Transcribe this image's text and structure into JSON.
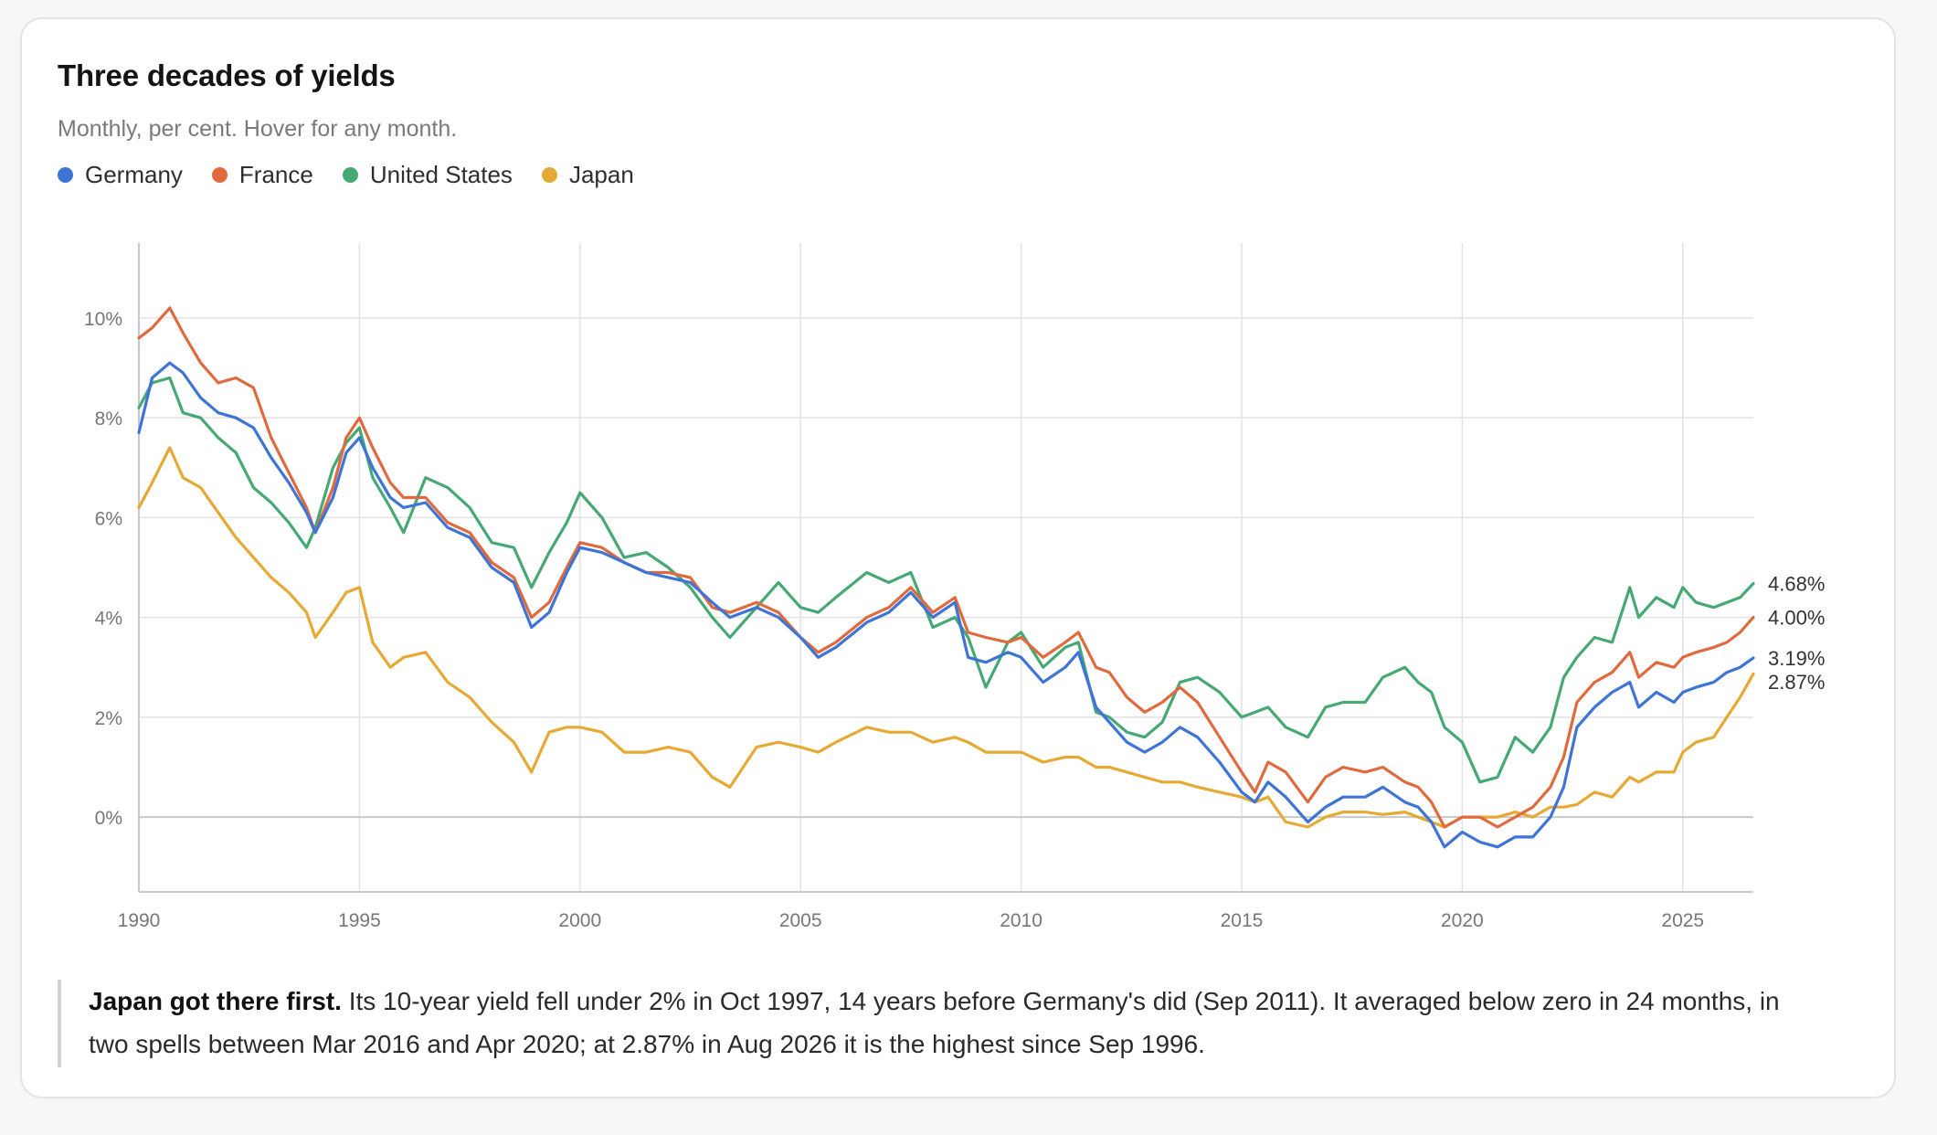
{
  "title": "Three decades of yields",
  "subtitle": "Monthly, per cent. Hover for any month.",
  "legend": [
    {
      "name": "Germany",
      "color": "#3e74d6"
    },
    {
      "name": "France",
      "color": "#e06a3d"
    },
    {
      "name": "United States",
      "color": "#46a874"
    },
    {
      "name": "Japan",
      "color": "#e6aa34"
    }
  ],
  "note": {
    "lead": "Japan got there first.",
    "body": " Its 10-year yield fell under 2% in Oct 1997, 14 years before Germany's did (Sep 2011). It averaged below zero in 24 months, in two spells between Mar 2016 and Apr 2020; at 2.87% in Aug 2026 it is the highest since Sep 1996."
  },
  "chart_data": {
    "type": "line",
    "title": "Three decades of yields",
    "subtitle": "Monthly, per cent. Hover for any month.",
    "xlim": [
      1990,
      2026.6
    ],
    "ylim": [
      -1.5,
      11.5
    ],
    "x_ticks": [
      1990,
      1995,
      2000,
      2005,
      2010,
      2015,
      2020,
      2025
    ],
    "x_tick_labels": [
      "1990",
      "1995",
      "2000",
      "2005",
      "2010",
      "2015",
      "2020",
      "2025"
    ],
    "y_ticks": [
      0,
      2,
      4,
      6,
      8,
      10
    ],
    "y_tick_labels": [
      "0%",
      "2%",
      "4%",
      "6%",
      "8%",
      "10%"
    ],
    "grid": "vertical and horizontal",
    "legend_position": "top-left",
    "end_labels": [
      {
        "series": "United States",
        "text": "4.68%",
        "value": 4.68
      },
      {
        "series": "France",
        "text": "4.00%",
        "value": 4.0
      },
      {
        "series": "Germany",
        "text": "3.19%",
        "value": 3.19
      },
      {
        "series": "Japan",
        "text": "2.87%",
        "value": 2.87
      }
    ],
    "series": [
      {
        "name": "Germany",
        "color": "#3e74d6",
        "x": [
          1990.0,
          1990.3,
          1990.7,
          1991.0,
          1991.4,
          1991.8,
          1992.2,
          1992.6,
          1993.0,
          1993.4,
          1993.8,
          1994.0,
          1994.4,
          1994.7,
          1995.0,
          1995.3,
          1995.7,
          1996.0,
          1996.5,
          1997.0,
          1997.5,
          1998.0,
          1998.5,
          1998.9,
          1999.3,
          1999.7,
          2000.0,
          2000.5,
          2001.0,
          2001.5,
          2002.0,
          2002.5,
          2003.0,
          2003.4,
          2004.0,
          2004.5,
          2005.0,
          2005.4,
          2005.8,
          2006.5,
          2007.0,
          2007.5,
          2008.0,
          2008.5,
          2008.8,
          2009.2,
          2009.7,
          2010.0,
          2010.5,
          2011.0,
          2011.3,
          2011.7,
          2012.0,
          2012.4,
          2012.8,
          2013.2,
          2013.6,
          2014.0,
          2014.5,
          2015.0,
          2015.3,
          2015.6,
          2016.0,
          2016.5,
          2016.9,
          2017.3,
          2017.8,
          2018.2,
          2018.7,
          2019.0,
          2019.3,
          2019.6,
          2020.0,
          2020.4,
          2020.8,
          2021.2,
          2021.6,
          2022.0,
          2022.3,
          2022.6,
          2023.0,
          2023.4,
          2023.8,
          2024.0,
          2024.4,
          2024.8,
          2025.0,
          2025.3,
          2025.7,
          2026.0,
          2026.3,
          2026.6
        ],
        "values": [
          7.7,
          8.8,
          9.1,
          8.9,
          8.4,
          8.1,
          8.0,
          7.8,
          7.2,
          6.7,
          6.1,
          5.7,
          6.4,
          7.3,
          7.6,
          7.0,
          6.4,
          6.2,
          6.3,
          5.8,
          5.6,
          5.0,
          4.7,
          3.8,
          4.1,
          4.9,
          5.4,
          5.3,
          5.1,
          4.9,
          4.8,
          4.7,
          4.3,
          4.0,
          4.2,
          4.0,
          3.6,
          3.2,
          3.4,
          3.9,
          4.1,
          4.5,
          4.0,
          4.3,
          3.2,
          3.1,
          3.3,
          3.2,
          2.7,
          3.0,
          3.3,
          2.2,
          1.9,
          1.5,
          1.3,
          1.5,
          1.8,
          1.6,
          1.1,
          0.5,
          0.3,
          0.7,
          0.4,
          -0.1,
          0.2,
          0.4,
          0.4,
          0.6,
          0.3,
          0.2,
          -0.1,
          -0.6,
          -0.3,
          -0.5,
          -0.6,
          -0.4,
          -0.4,
          0.0,
          0.6,
          1.8,
          2.2,
          2.5,
          2.7,
          2.2,
          2.5,
          2.3,
          2.5,
          2.6,
          2.7,
          2.9,
          3.0,
          3.19
        ]
      },
      {
        "name": "France",
        "color": "#e06a3d",
        "x": [
          1990.0,
          1990.3,
          1990.7,
          1991.0,
          1991.4,
          1991.8,
          1992.2,
          1992.6,
          1993.0,
          1993.4,
          1993.8,
          1994.0,
          1994.4,
          1994.7,
          1995.0,
          1995.3,
          1995.7,
          1996.0,
          1996.5,
          1997.0,
          1997.5,
          1998.0,
          1998.5,
          1998.9,
          1999.3,
          1999.7,
          2000.0,
          2000.5,
          2001.0,
          2001.5,
          2002.0,
          2002.5,
          2003.0,
          2003.4,
          2004.0,
          2004.5,
          2005.0,
          2005.4,
          2005.8,
          2006.5,
          2007.0,
          2007.5,
          2008.0,
          2008.5,
          2008.8,
          2009.2,
          2009.7,
          2010.0,
          2010.5,
          2011.0,
          2011.3,
          2011.7,
          2012.0,
          2012.4,
          2012.8,
          2013.2,
          2013.6,
          2014.0,
          2014.5,
          2015.0,
          2015.3,
          2015.6,
          2016.0,
          2016.5,
          2016.9,
          2017.3,
          2017.8,
          2018.2,
          2018.7,
          2019.0,
          2019.3,
          2019.6,
          2020.0,
          2020.4,
          2020.8,
          2021.2,
          2021.6,
          2022.0,
          2022.3,
          2022.6,
          2023.0,
          2023.4,
          2023.8,
          2024.0,
          2024.4,
          2024.8,
          2025.0,
          2025.3,
          2025.7,
          2026.0,
          2026.3,
          2026.6
        ],
        "values": [
          9.6,
          9.8,
          10.2,
          9.7,
          9.1,
          8.7,
          8.8,
          8.6,
          7.6,
          6.9,
          6.2,
          5.7,
          6.6,
          7.6,
          8.0,
          7.4,
          6.7,
          6.4,
          6.4,
          5.9,
          5.7,
          5.1,
          4.8,
          4.0,
          4.3,
          5.0,
          5.5,
          5.4,
          5.1,
          4.9,
          4.9,
          4.8,
          4.2,
          4.1,
          4.3,
          4.1,
          3.6,
          3.3,
          3.5,
          4.0,
          4.2,
          4.6,
          4.1,
          4.4,
          3.7,
          3.6,
          3.5,
          3.6,
          3.2,
          3.5,
          3.7,
          3.0,
          2.9,
          2.4,
          2.1,
          2.3,
          2.6,
          2.3,
          1.6,
          0.9,
          0.5,
          1.1,
          0.9,
          0.3,
          0.8,
          1.0,
          0.9,
          1.0,
          0.7,
          0.6,
          0.3,
          -0.2,
          0.0,
          0.0,
          -0.2,
          0.0,
          0.2,
          0.6,
          1.2,
          2.3,
          2.7,
          2.9,
          3.3,
          2.8,
          3.1,
          3.0,
          3.2,
          3.3,
          3.4,
          3.5,
          3.7,
          4.0
        ]
      },
      {
        "name": "United States",
        "color": "#46a874",
        "x": [
          1990.0,
          1990.3,
          1990.7,
          1991.0,
          1991.4,
          1991.8,
          1992.2,
          1992.6,
          1993.0,
          1993.4,
          1993.8,
          1994.0,
          1994.4,
          1994.7,
          1995.0,
          1995.3,
          1995.7,
          1996.0,
          1996.5,
          1997.0,
          1997.5,
          1998.0,
          1998.5,
          1998.9,
          1999.3,
          1999.7,
          2000.0,
          2000.5,
          2001.0,
          2001.5,
          2002.0,
          2002.5,
          2003.0,
          2003.4,
          2004.0,
          2004.5,
          2005.0,
          2005.4,
          2005.8,
          2006.5,
          2007.0,
          2007.5,
          2008.0,
          2008.5,
          2008.8,
          2009.2,
          2009.7,
          2010.0,
          2010.5,
          2011.0,
          2011.3,
          2011.7,
          2012.0,
          2012.4,
          2012.8,
          2013.2,
          2013.6,
          2014.0,
          2014.5,
          2015.0,
          2015.3,
          2015.6,
          2016.0,
          2016.5,
          2016.9,
          2017.3,
          2017.8,
          2018.2,
          2018.7,
          2019.0,
          2019.3,
          2019.6,
          2020.0,
          2020.4,
          2020.8,
          2021.2,
          2021.6,
          2022.0,
          2022.3,
          2022.6,
          2023.0,
          2023.4,
          2023.8,
          2024.0,
          2024.4,
          2024.8,
          2025.0,
          2025.3,
          2025.7,
          2026.0,
          2026.3,
          2026.6
        ],
        "values": [
          8.2,
          8.7,
          8.8,
          8.1,
          8.0,
          7.6,
          7.3,
          6.6,
          6.3,
          5.9,
          5.4,
          5.8,
          7.0,
          7.5,
          7.8,
          6.8,
          6.2,
          5.7,
          6.8,
          6.6,
          6.2,
          5.5,
          5.4,
          4.6,
          5.3,
          5.9,
          6.5,
          6.0,
          5.2,
          5.3,
          5.0,
          4.6,
          4.0,
          3.6,
          4.2,
          4.7,
          4.2,
          4.1,
          4.4,
          4.9,
          4.7,
          4.9,
          3.8,
          4.0,
          3.6,
          2.6,
          3.5,
          3.7,
          3.0,
          3.4,
          3.5,
          2.1,
          2.0,
          1.7,
          1.6,
          1.9,
          2.7,
          2.8,
          2.5,
          2.0,
          2.1,
          2.2,
          1.8,
          1.6,
          2.2,
          2.3,
          2.3,
          2.8,
          3.0,
          2.7,
          2.5,
          1.8,
          1.5,
          0.7,
          0.8,
          1.6,
          1.3,
          1.8,
          2.8,
          3.2,
          3.6,
          3.5,
          4.6,
          4.0,
          4.4,
          4.2,
          4.6,
          4.3,
          4.2,
          4.3,
          4.4,
          4.68
        ]
      },
      {
        "name": "Japan",
        "color": "#e6aa34",
        "x": [
          1990.0,
          1990.3,
          1990.7,
          1991.0,
          1991.4,
          1991.8,
          1992.2,
          1992.6,
          1993.0,
          1993.4,
          1993.8,
          1994.0,
          1994.4,
          1994.7,
          1995.0,
          1995.3,
          1995.7,
          1996.0,
          1996.5,
          1997.0,
          1997.5,
          1998.0,
          1998.5,
          1998.9,
          1999.3,
          1999.7,
          2000.0,
          2000.5,
          2001.0,
          2001.5,
          2002.0,
          2002.5,
          2003.0,
          2003.4,
          2004.0,
          2004.5,
          2005.0,
          2005.4,
          2005.8,
          2006.5,
          2007.0,
          2007.5,
          2008.0,
          2008.5,
          2008.8,
          2009.2,
          2009.7,
          2010.0,
          2010.5,
          2011.0,
          2011.3,
          2011.7,
          2012.0,
          2012.4,
          2012.8,
          2013.2,
          2013.6,
          2014.0,
          2014.5,
          2015.0,
          2015.3,
          2015.6,
          2016.0,
          2016.5,
          2016.9,
          2017.3,
          2017.8,
          2018.2,
          2018.7,
          2019.0,
          2019.3,
          2019.6,
          2020.0,
          2020.4,
          2020.8,
          2021.2,
          2021.6,
          2022.0,
          2022.3,
          2022.6,
          2023.0,
          2023.4,
          2023.8,
          2024.0,
          2024.4,
          2024.8,
          2025.0,
          2025.3,
          2025.7,
          2026.0,
          2026.3,
          2026.6
        ],
        "values": [
          6.2,
          6.7,
          7.4,
          6.8,
          6.6,
          6.1,
          5.6,
          5.2,
          4.8,
          4.5,
          4.1,
          3.6,
          4.1,
          4.5,
          4.6,
          3.5,
          3.0,
          3.2,
          3.3,
          2.7,
          2.4,
          1.9,
          1.5,
          0.9,
          1.7,
          1.8,
          1.8,
          1.7,
          1.3,
          1.3,
          1.4,
          1.3,
          0.8,
          0.6,
          1.4,
          1.5,
          1.4,
          1.3,
          1.5,
          1.8,
          1.7,
          1.7,
          1.5,
          1.6,
          1.5,
          1.3,
          1.3,
          1.3,
          1.1,
          1.2,
          1.2,
          1.0,
          1.0,
          0.9,
          0.8,
          0.7,
          0.7,
          0.6,
          0.5,
          0.4,
          0.3,
          0.4,
          -0.1,
          -0.2,
          0.0,
          0.1,
          0.1,
          0.05,
          0.1,
          0.0,
          -0.1,
          -0.2,
          0.0,
          0.0,
          0.0,
          0.1,
          0.0,
          0.2,
          0.2,
          0.25,
          0.5,
          0.4,
          0.8,
          0.7,
          0.9,
          0.9,
          1.3,
          1.5,
          1.6,
          2.0,
          2.4,
          2.87
        ]
      }
    ]
  }
}
